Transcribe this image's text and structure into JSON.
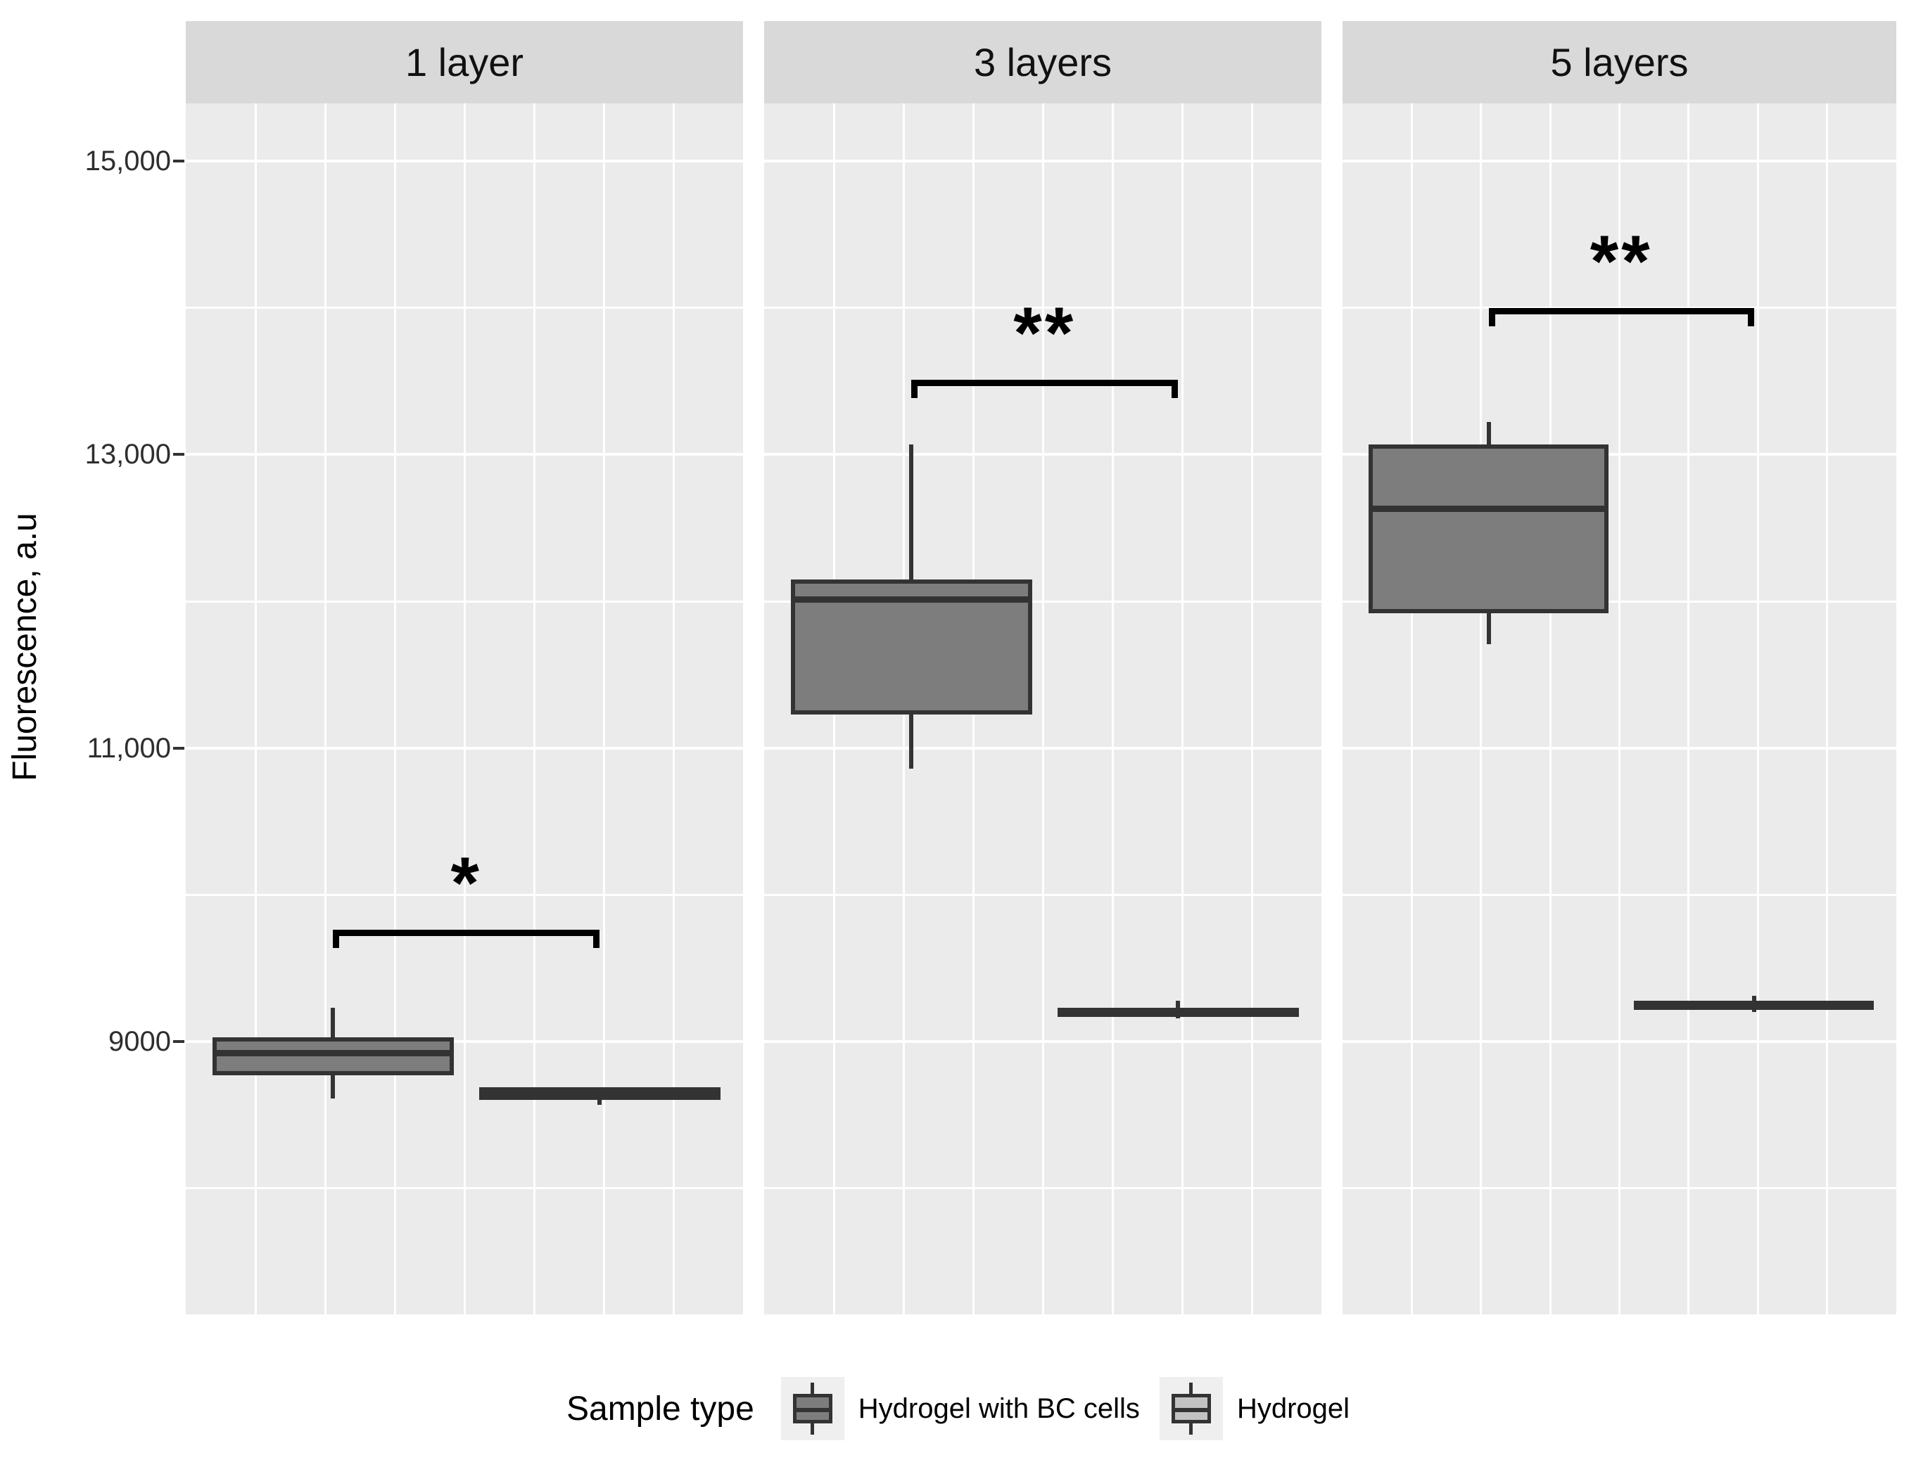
{
  "chart_data": {
    "type": "boxplot",
    "title": "",
    "ylabel": "Fluorescence, a.u",
    "xlabel": "",
    "ylim": [
      7170,
      15390
    ],
    "grid": true,
    "y_ticks": [
      {
        "value": 9000,
        "label": "9000"
      },
      {
        "value": 11000,
        "label": "11,000"
      },
      {
        "value": 13000,
        "label": "13,000"
      },
      {
        "value": 15000,
        "label": "15,000"
      }
    ],
    "y_minor_gridlines": [
      8000,
      10000,
      12000,
      14000
    ],
    "facets": [
      {
        "label": "1 layer",
        "boxes": [
          {
            "series": "Hydrogel with BC cells",
            "whisker_low": 8610,
            "q1": 8770,
            "median": 8920,
            "q3": 9030,
            "whisker_high": 9230
          },
          {
            "series": "Hydrogel",
            "whisker_low": 8570,
            "q1": 8600,
            "median": 8670,
            "q3": 8690,
            "whisker_high": 8690
          }
        ],
        "significance": {
          "label": "*",
          "bar_value": 9760,
          "between": [
            "Hydrogel with BC cells",
            "Hydrogel"
          ]
        }
      },
      {
        "label": "3 layers",
        "boxes": [
          {
            "series": "Hydrogel with BC cells",
            "whisker_low": 10860,
            "q1": 11230,
            "median": 12010,
            "q3": 12150,
            "whisker_high": 13070
          },
          {
            "series": "Hydrogel",
            "whisker_low": 9160,
            "q1": 9180,
            "median": 9200,
            "q3": 9230,
            "whisker_high": 9280
          }
        ],
        "significance": {
          "label": "**",
          "bar_value": 13510,
          "between": [
            "Hydrogel with BC cells",
            "Hydrogel"
          ]
        }
      },
      {
        "label": "5 layers",
        "boxes": [
          {
            "series": "Hydrogel with BC cells",
            "whisker_low": 11710,
            "q1": 11920,
            "median": 12630,
            "q3": 13070,
            "whisker_high": 13220
          },
          {
            "series": "Hydrogel",
            "whisker_low": 9200,
            "q1": 9220,
            "median": 9250,
            "q3": 9280,
            "whisker_high": 9310
          }
        ],
        "significance": {
          "label": "**",
          "bar_value": 14000,
          "between": [
            "Hydrogel with BC cells",
            "Hydrogel"
          ]
        }
      }
    ],
    "legend": {
      "title": "Sample type",
      "position": "bottom",
      "entries": [
        {
          "label": "Hydrogel with BC cells",
          "fill": "#7d7d7d"
        },
        {
          "label": "Hydrogel",
          "fill": "#c2c2c2"
        }
      ]
    },
    "colors": {
      "panel_background": "#ebebeb",
      "strip_background": "#d9d9d9",
      "gridline": "#ffffff",
      "box_border": "#333333",
      "dark_fill": "#7d7d7d",
      "light_fill": "#c2c2c2",
      "significance": "#000000"
    }
  }
}
